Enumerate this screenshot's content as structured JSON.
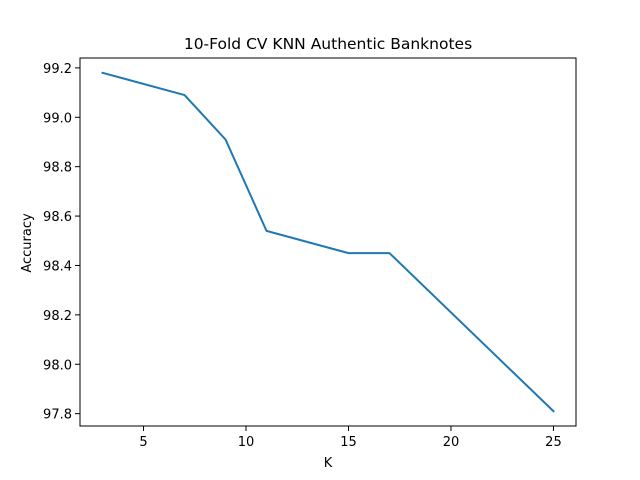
{
  "chart_data": {
    "type": "line",
    "title": "10-Fold CV  KNN Authentic Banknotes",
    "xlabel": "K",
    "ylabel": "Accuracy",
    "x": [
      3,
      7,
      9,
      11,
      15,
      17,
      25
    ],
    "series": [
      {
        "values": [
          99.18,
          99.09,
          98.91,
          98.54,
          98.45,
          98.45,
          97.81
        ],
        "color": "#1f77b4"
      }
    ],
    "xlim": [
      1.9,
      26.1
    ],
    "ylim": [
      97.75,
      99.24
    ],
    "xticks": [
      5,
      10,
      15,
      20,
      25
    ],
    "xtick_labels": [
      "5",
      "10",
      "15",
      "20",
      "25"
    ],
    "yticks": [
      97.8,
      98.0,
      98.2,
      98.4,
      98.6,
      98.8,
      99.0,
      99.2
    ],
    "ytick_labels": [
      "97.8",
      "98.0",
      "98.2",
      "98.4",
      "98.6",
      "98.8",
      "99.0",
      "99.2"
    ],
    "grid": false,
    "legend": "none"
  }
}
